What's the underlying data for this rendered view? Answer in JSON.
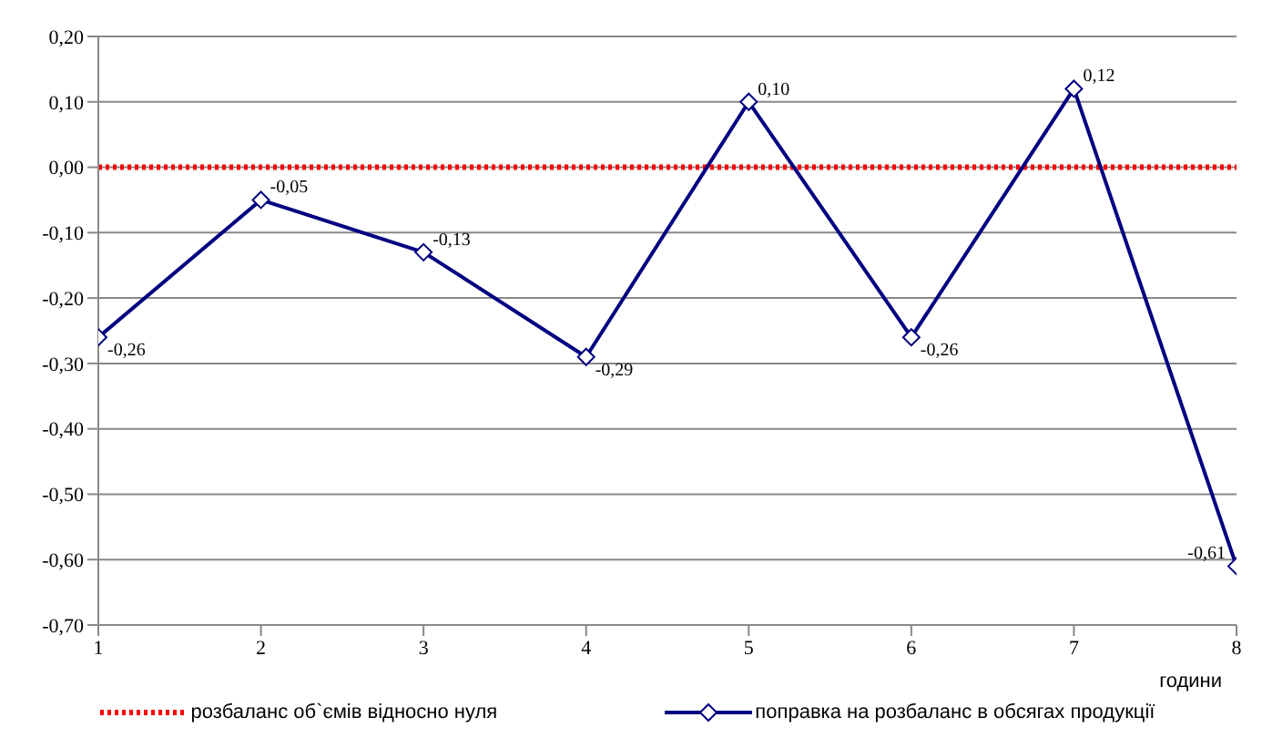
{
  "chart_data": {
    "type": "line",
    "xlabel": "години",
    "x": [
      1,
      2,
      3,
      4,
      5,
      6,
      7,
      8
    ],
    "xlim": [
      1,
      8
    ],
    "xticks": [
      1,
      2,
      3,
      4,
      5,
      6,
      7,
      8
    ],
    "ylim": [
      -0.7,
      0.2
    ],
    "yticks": [
      {
        "value": -0.7,
        "label": "-0,70"
      },
      {
        "value": -0.6,
        "label": "-0,60"
      },
      {
        "value": -0.5,
        "label": "-0,50"
      },
      {
        "value": -0.4,
        "label": "-0,40"
      },
      {
        "value": -0.3,
        "label": "-0,30"
      },
      {
        "value": -0.2,
        "label": "-0,20"
      },
      {
        "value": -0.1,
        "label": "-0,10"
      },
      {
        "value": 0,
        "label": "0,00"
      },
      {
        "value": 0.1,
        "label": "0,10"
      },
      {
        "value": 0.2,
        "label": "0,20"
      }
    ],
    "grid": "y",
    "legend": "bottom",
    "series": [
      {
        "name": "розбаланс об`ємів відносно нуля",
        "color": "#ff0000",
        "values": [
          0,
          0,
          0,
          0,
          0,
          0,
          0,
          0
        ],
        "line_style": "dotted",
        "marker": "none"
      },
      {
        "name": "поправка на розбаланс в обсягах продукції",
        "color": "#000080",
        "values": [
          -0.26,
          -0.05,
          -0.13,
          -0.29,
          0.1,
          -0.26,
          0.12,
          -0.61
        ],
        "line_style": "solid",
        "marker": "diamond",
        "value_labels": [
          "-0,26",
          "-0,05",
          "-0,13",
          "-0,29",
          "0,10",
          "-0,26",
          "0,12",
          "-0,61"
        ]
      }
    ]
  }
}
